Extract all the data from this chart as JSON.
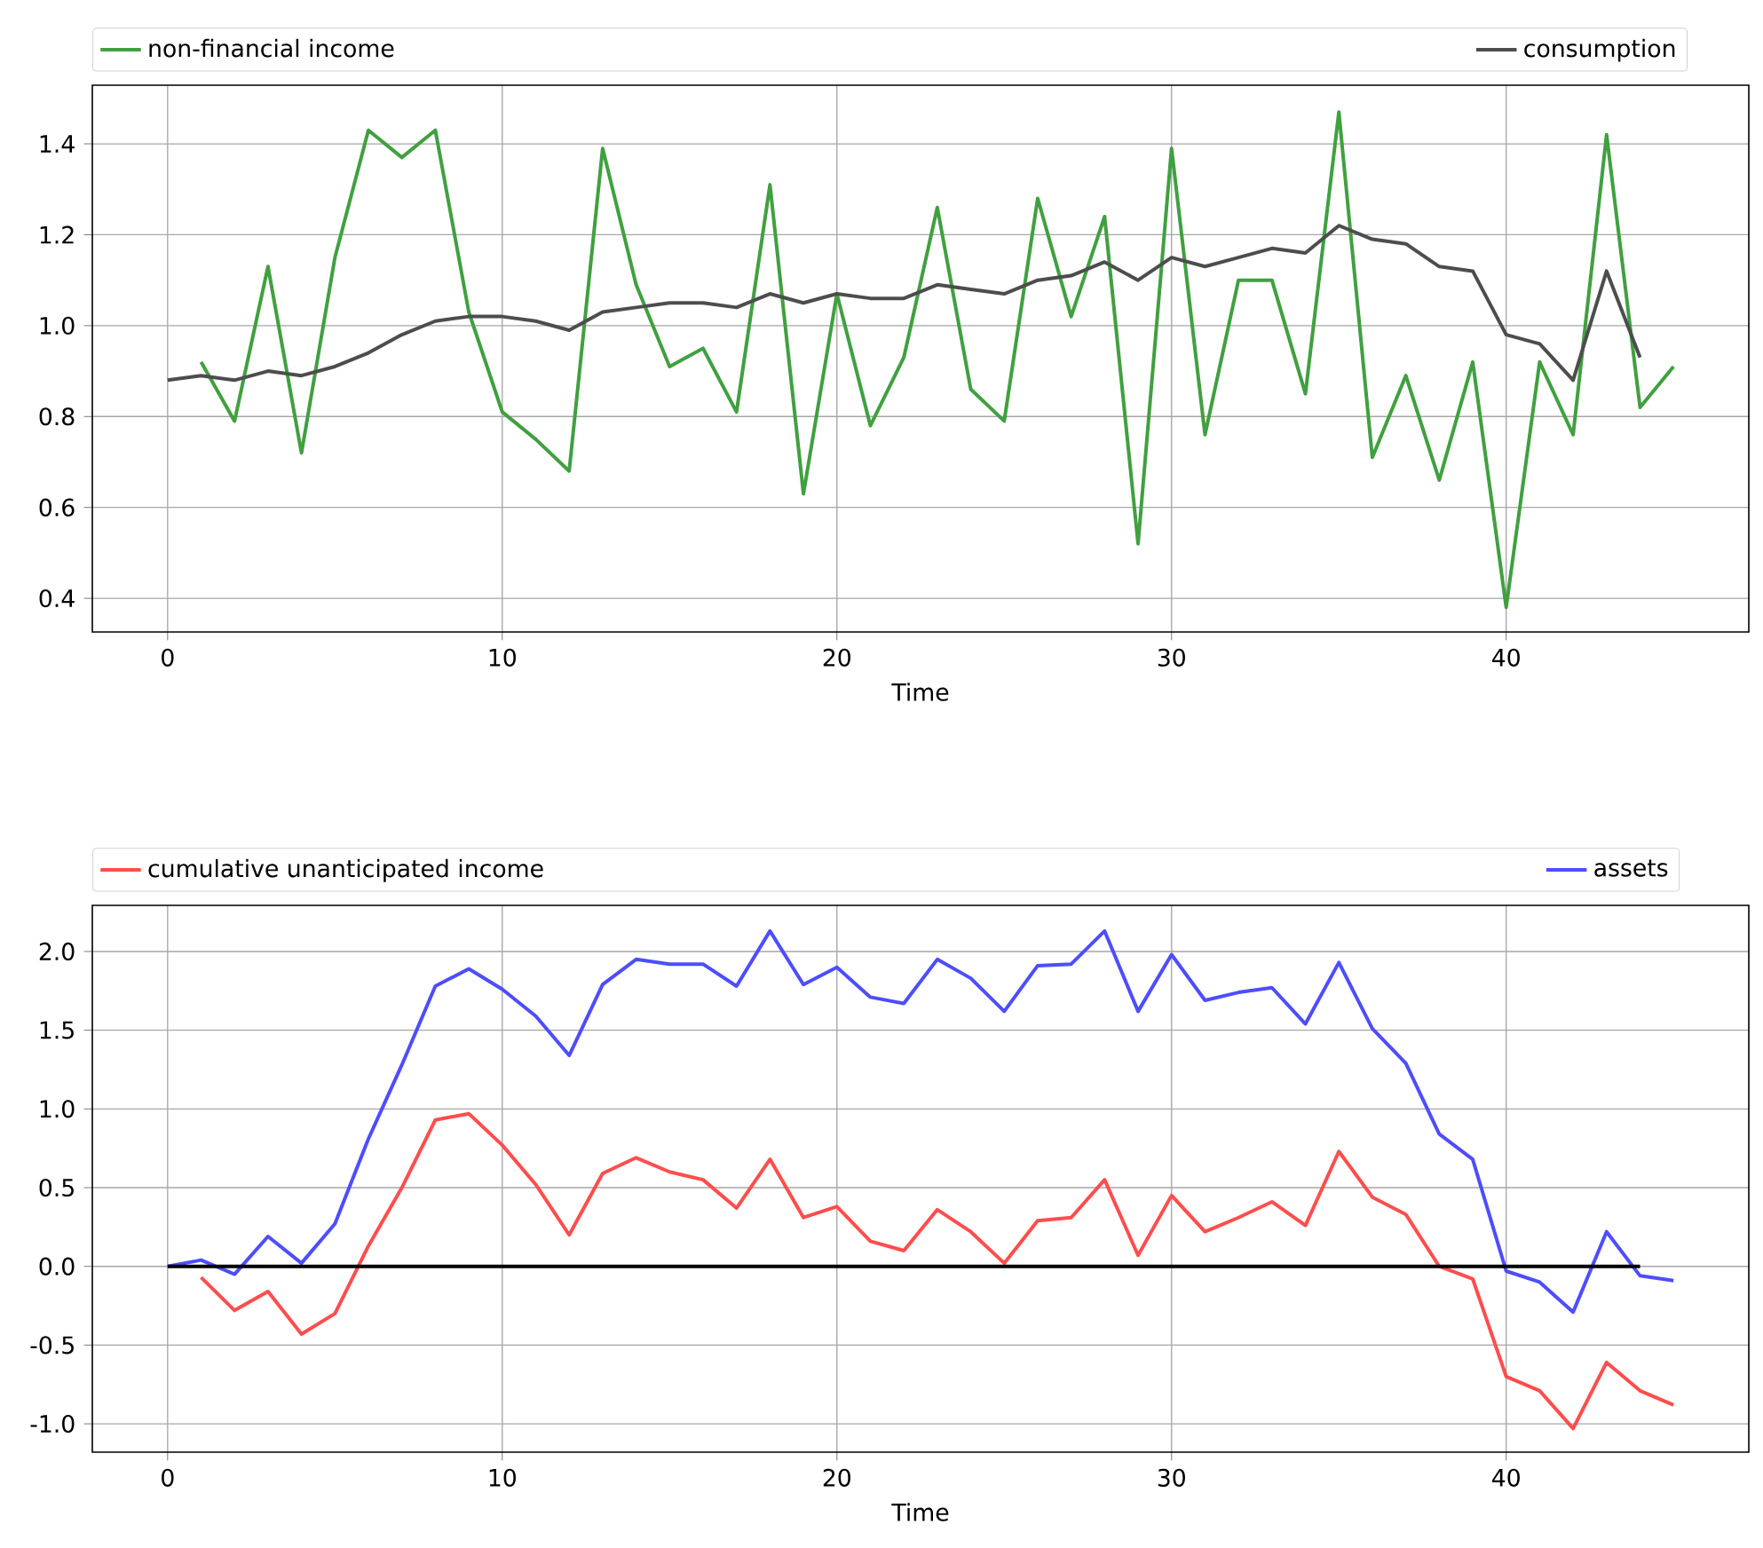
{
  "chart_data": [
    {
      "type": "line",
      "xlabel": "Time",
      "grid": true,
      "legend": "top",
      "xlim": [
        -2.25,
        47.25
      ],
      "ylim": [
        0.326,
        1.529
      ],
      "xticks": [
        0,
        10,
        20,
        30,
        40
      ],
      "yticks": [
        {
          "value": 0.4,
          "label": "0.4"
        },
        {
          "value": 0.6,
          "label": "0.6"
        },
        {
          "value": 0.8,
          "label": "0.8"
        },
        {
          "value": 1,
          "label": "1.0"
        },
        {
          "value": 1.2,
          "label": "1.2"
        },
        {
          "value": 1.4,
          "label": "1.4"
        }
      ],
      "series": [
        {
          "name": "non-financial income",
          "color": "#40a040",
          "x": [
            1,
            2,
            3,
            4,
            5,
            6,
            7,
            8,
            9,
            10,
            11,
            12,
            13,
            14,
            15,
            16,
            17,
            18,
            19,
            20,
            21,
            22,
            23,
            24,
            25,
            26,
            27,
            28,
            29,
            30,
            31,
            32,
            33,
            34,
            35,
            36,
            37,
            38,
            39,
            40,
            41,
            42,
            43,
            44,
            45
          ],
          "values": [
            0.92,
            0.79,
            1.13,
            0.72,
            1.15,
            1.43,
            1.37,
            1.43,
            1.03,
            0.81,
            0.75,
            0.68,
            1.39,
            1.09,
            0.91,
            0.95,
            0.81,
            1.31,
            0.63,
            1.07,
            0.78,
            0.93,
            1.26,
            0.86,
            0.79,
            1.28,
            1.02,
            1.24,
            0.52,
            1.39,
            0.76,
            1.1,
            1.1,
            0.85,
            1.47,
            0.71,
            0.89,
            0.66,
            0.92,
            0.38,
            0.92,
            0.76,
            1.42,
            0.82,
            0.91
          ]
        },
        {
          "name": "consumption",
          "color": "#4d4d4d",
          "x": [
            0,
            1,
            2,
            3,
            4,
            5,
            6,
            7,
            8,
            9,
            10,
            11,
            12,
            13,
            14,
            15,
            16,
            17,
            18,
            19,
            20,
            21,
            22,
            23,
            24,
            25,
            26,
            27,
            28,
            29,
            30,
            31,
            32,
            33,
            34,
            35,
            36,
            37,
            38,
            39,
            40,
            41,
            42,
            43,
            44
          ],
          "values": [
            0.88,
            0.89,
            0.88,
            0.9,
            0.89,
            0.91,
            0.94,
            0.98,
            1.01,
            1.02,
            1.02,
            1.01,
            0.99,
            1.03,
            1.04,
            1.05,
            1.05,
            1.04,
            1.07,
            1.05,
            1.07,
            1.06,
            1.06,
            1.09,
            1.08,
            1.07,
            1.1,
            1.11,
            1.14,
            1.1,
            1.15,
            1.13,
            1.15,
            1.17,
            1.16,
            1.22,
            1.19,
            1.18,
            1.13,
            1.12,
            0.98,
            0.96,
            0.88,
            1.12,
            0.93
          ]
        }
      ]
    },
    {
      "type": "line",
      "xlabel": "Time",
      "grid": true,
      "legend": "top",
      "xlim": [
        -2.25,
        47.25
      ],
      "ylim": [
        -1.18,
        2.293
      ],
      "xticks": [
        0,
        10,
        20,
        30,
        40
      ],
      "yticks": [
        {
          "value": -1,
          "label": "-1.0"
        },
        {
          "value": -0.5,
          "label": "-0.5"
        },
        {
          "value": 0,
          "label": "0.0"
        },
        {
          "value": 0.5,
          "label": "0.5"
        },
        {
          "value": 1,
          "label": "1.0"
        },
        {
          "value": 1.5,
          "label": "1.5"
        },
        {
          "value": 2,
          "label": "2.0"
        }
      ],
      "series": [
        {
          "name": "cumulative unanticipated income",
          "color": "#ff4d4d",
          "x": [
            1,
            2,
            3,
            4,
            5,
            6,
            7,
            8,
            9,
            10,
            11,
            12,
            13,
            14,
            15,
            16,
            17,
            18,
            19,
            20,
            21,
            22,
            23,
            24,
            25,
            26,
            27,
            28,
            29,
            30,
            31,
            32,
            33,
            34,
            35,
            36,
            37,
            38,
            39,
            40,
            41,
            42,
            43,
            44,
            45
          ],
          "values": [
            -0.07,
            -0.28,
            -0.16,
            -0.43,
            -0.3,
            0.13,
            0.5,
            0.93,
            0.97,
            0.77,
            0.52,
            0.2,
            0.59,
            0.69,
            0.6,
            0.55,
            0.37,
            0.68,
            0.31,
            0.38,
            0.16,
            0.1,
            0.36,
            0.22,
            0.02,
            0.29,
            0.31,
            0.55,
            0.07,
            0.45,
            0.22,
            0.31,
            0.41,
            0.26,
            0.73,
            0.44,
            0.33,
            0.0,
            -0.08,
            -0.7,
            -0.79,
            -1.03,
            -0.61,
            -0.79,
            -0.88
          ]
        },
        {
          "name": "assets",
          "color": "#4d4dff",
          "x": [
            0,
            1,
            2,
            3,
            4,
            5,
            6,
            7,
            8,
            9,
            10,
            11,
            12,
            13,
            14,
            15,
            16,
            17,
            18,
            19,
            20,
            21,
            22,
            23,
            24,
            25,
            26,
            27,
            28,
            29,
            30,
            31,
            32,
            33,
            34,
            35,
            36,
            37,
            38,
            39,
            40,
            41,
            42,
            43,
            44,
            45
          ],
          "values": [
            0.0,
            0.04,
            -0.05,
            0.19,
            0.02,
            0.27,
            0.81,
            1.28,
            1.78,
            1.89,
            1.76,
            1.59,
            1.34,
            1.79,
            1.95,
            1.92,
            1.92,
            1.78,
            2.13,
            1.79,
            1.9,
            1.71,
            1.67,
            1.95,
            1.83,
            1.62,
            1.91,
            1.92,
            2.13,
            1.62,
            1.98,
            1.69,
            1.74,
            1.77,
            1.54,
            1.93,
            1.51,
            1.29,
            0.84,
            0.68,
            -0.03,
            -0.1,
            -0.29,
            0.22,
            -0.06,
            -0.09
          ]
        },
        {
          "color": "#000000",
          "x": [
            0,
            44
          ],
          "values": [
            0,
            0
          ]
        }
      ]
    }
  ]
}
